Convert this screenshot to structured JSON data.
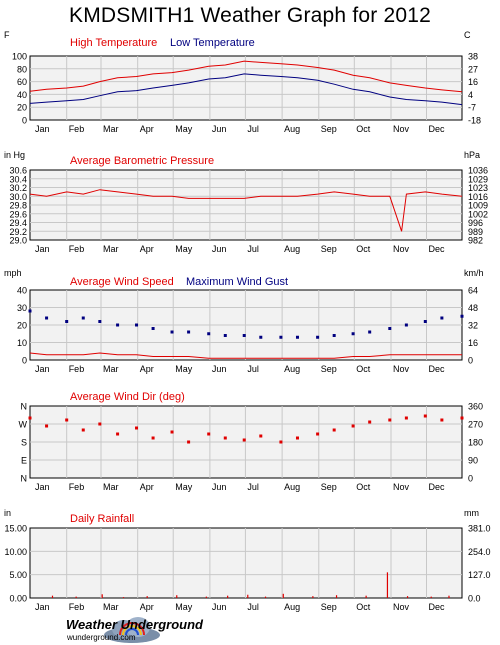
{
  "title": "KMDSMITH1 Weather Graph for 2012",
  "months": [
    "Jan",
    "Feb",
    "Mar",
    "Apr",
    "May",
    "Jun",
    "Jul",
    "Aug",
    "Sep",
    "Oct",
    "Nov",
    "Dec"
  ],
  "footer": {
    "brand": "Weather Underground",
    "url": "wunderground.com",
    "logo_icon": "cloud-rainbow-icon"
  },
  "colors": {
    "red": "#e00000",
    "blue": "#000080",
    "plot_bg": "#f2f2f2",
    "grid": "#c8c8c8"
  },
  "chart_data": [
    {
      "id": "temp",
      "type": "line",
      "left_unit": "F",
      "right_unit": "C",
      "ylim": [
        0,
        100
      ],
      "left_ticks": [
        "0",
        "20",
        "40",
        "60",
        "80",
        "100"
      ],
      "right_ticks": [
        "-18",
        "-7",
        "4",
        "16",
        "27",
        "38"
      ],
      "grid": true,
      "series": [
        {
          "name": "High Temperature",
          "color": "#e00000",
          "style": "line",
          "x": [
            1,
            15,
            32,
            46,
            60,
            75,
            91,
            105,
            121,
            135,
            152,
            166,
            182,
            196,
            213,
            227,
            244,
            258,
            274,
            288,
            305,
            319,
            335,
            349,
            366
          ],
          "y": [
            45,
            48,
            50,
            53,
            60,
            66,
            68,
            72,
            74,
            78,
            84,
            86,
            92,
            90,
            88,
            86,
            82,
            78,
            70,
            66,
            58,
            54,
            50,
            47,
            44
          ]
        },
        {
          "name": "Low Temperature",
          "color": "#000080",
          "style": "line",
          "x": [
            1,
            15,
            32,
            46,
            60,
            75,
            91,
            105,
            121,
            135,
            152,
            166,
            182,
            196,
            213,
            227,
            244,
            258,
            274,
            288,
            305,
            319,
            335,
            349,
            366
          ],
          "y": [
            26,
            28,
            30,
            32,
            38,
            44,
            46,
            50,
            54,
            58,
            64,
            66,
            72,
            70,
            68,
            66,
            62,
            56,
            48,
            44,
            36,
            32,
            30,
            28,
            24
          ]
        }
      ]
    },
    {
      "id": "pressure",
      "type": "line",
      "title": "Average Barometric Pressure",
      "left_unit": "in Hg",
      "right_unit": "hPa",
      "ylim": [
        29.0,
        30.6
      ],
      "left_ticks": [
        "29.0",
        "29.2",
        "29.4",
        "29.6",
        "29.8",
        "30.0",
        "30.2",
        "30.4",
        "30.6"
      ],
      "right_ticks": [
        "982",
        "989",
        "996",
        "1002",
        "1009",
        "1016",
        "1023",
        "1029",
        "1036"
      ],
      "grid": true,
      "series": [
        {
          "name": "Average Barometric Pressure",
          "color": "#e00000",
          "style": "line",
          "x": [
            1,
            15,
            32,
            46,
            60,
            75,
            91,
            105,
            121,
            135,
            152,
            166,
            182,
            196,
            213,
            227,
            244,
            258,
            274,
            288,
            305,
            315,
            319,
            335,
            349,
            366
          ],
          "y": [
            30.05,
            30.0,
            30.1,
            30.05,
            30.15,
            30.1,
            30.05,
            30.0,
            30.0,
            29.95,
            29.95,
            29.95,
            29.95,
            30.0,
            30.0,
            30.0,
            30.05,
            30.1,
            30.05,
            30.0,
            30.0,
            29.2,
            30.05,
            30.1,
            30.05,
            30.0
          ]
        }
      ]
    },
    {
      "id": "wind",
      "type": "scatter",
      "left_unit": "mph",
      "right_unit": "km/h",
      "ylim": [
        0,
        40
      ],
      "left_ticks": [
        "0",
        "10",
        "20",
        "30",
        "40"
      ],
      "right_ticks": [
        "0",
        "16",
        "32",
        "48",
        "64"
      ],
      "grid": true,
      "series": [
        {
          "name": "Average Wind Speed",
          "color": "#e00000",
          "style": "line",
          "x": [
            1,
            15,
            32,
            46,
            60,
            75,
            91,
            105,
            121,
            135,
            152,
            166,
            182,
            196,
            213,
            227,
            244,
            258,
            274,
            288,
            305,
            319,
            335,
            349,
            366
          ],
          "y": [
            4,
            3,
            3,
            3,
            4,
            3,
            3,
            2,
            2,
            2,
            1,
            1,
            1,
            1,
            1,
            1,
            1,
            1,
            2,
            2,
            3,
            3,
            3,
            3,
            3
          ]
        },
        {
          "name": "Maximum Wind Gust",
          "color": "#000080",
          "style": "points",
          "x": [
            1,
            15,
            32,
            46,
            60,
            75,
            91,
            105,
            121,
            135,
            152,
            166,
            182,
            196,
            213,
            227,
            244,
            258,
            274,
            288,
            305,
            319,
            335,
            349,
            366
          ],
          "y": [
            28,
            24,
            22,
            24,
            22,
            20,
            20,
            18,
            16,
            16,
            15,
            14,
            14,
            13,
            13,
            13,
            13,
            14,
            15,
            16,
            18,
            20,
            22,
            24,
            25
          ]
        }
      ]
    },
    {
      "id": "winddir",
      "type": "scatter",
      "title": "Average Wind Dir (deg)",
      "left_unit": "",
      "right_unit": "",
      "ylim": [
        0,
        360
      ],
      "left_ticks": [
        "N",
        "E",
        "S",
        "W",
        "N"
      ],
      "right_ticks": [
        "0",
        "90",
        "180",
        "270",
        "360"
      ],
      "grid": true,
      "series": [
        {
          "name": "Average Wind Dir (deg)",
          "color": "#e00000",
          "style": "points",
          "x": [
            1,
            15,
            32,
            46,
            60,
            75,
            91,
            105,
            121,
            135,
            152,
            166,
            182,
            196,
            213,
            227,
            244,
            258,
            274,
            288,
            305,
            319,
            335,
            349,
            366
          ],
          "y": [
            300,
            260,
            290,
            240,
            270,
            220,
            250,
            200,
            230,
            180,
            220,
            200,
            190,
            210,
            180,
            200,
            220,
            240,
            260,
            280,
            290,
            300,
            310,
            290,
            300
          ]
        }
      ]
    },
    {
      "id": "rain",
      "type": "bar",
      "title": "Daily Rainfall",
      "left_unit": "in",
      "right_unit": "mm",
      "ylim": [
        0,
        15
      ],
      "left_ticks": [
        "0.00",
        "5.00",
        "10.00",
        "15.00"
      ],
      "right_ticks": [
        "0.0",
        "127.0",
        "254.0",
        "381.0"
      ],
      "grid": true,
      "series": [
        {
          "name": "Daily Rainfall",
          "color": "#e00000",
          "style": "bars",
          "x": [
            20,
            40,
            62,
            80,
            100,
            125,
            150,
            168,
            185,
            200,
            215,
            240,
            260,
            285,
            303,
            320,
            340,
            355
          ],
          "y": [
            0.5,
            0.3,
            0.8,
            0.2,
            0.4,
            0.6,
            0.3,
            0.5,
            0.7,
            0.3,
            0.9,
            0.4,
            0.6,
            0.5,
            5.5,
            0.4,
            0.3,
            0.5
          ]
        }
      ]
    }
  ]
}
